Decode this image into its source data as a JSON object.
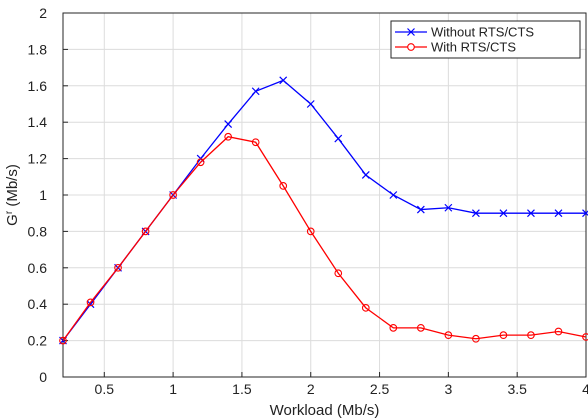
{
  "chart_data": {
    "type": "line",
    "xlabel": "Workload (Mb/s)",
    "ylabel": "G",
    "ylabel_sup": "r",
    "ylabel_unit": " (Mb/s)",
    "xlim": [
      0.2,
      4
    ],
    "ylim": [
      0,
      2
    ],
    "xticks": [
      0.5,
      1,
      1.5,
      2,
      2.5,
      3,
      3.5,
      4
    ],
    "xtick_labels": [
      "0.5",
      "1",
      "1.5",
      "2",
      "2.5",
      "3",
      "3.5",
      "4"
    ],
    "yticks": [
      0,
      0.2,
      0.4,
      0.6,
      0.8,
      1,
      1.2,
      1.4,
      1.6,
      1.8,
      2
    ],
    "ytick_labels": [
      "0",
      "0.2",
      "0.4",
      "0.6",
      "0.8",
      "1",
      "1.2",
      "1.4",
      "1.6",
      "1.8",
      "2"
    ],
    "grid": true,
    "legend_position": "top-right",
    "series": [
      {
        "name": "Without RTS/CTS",
        "color": "#0000ff",
        "marker": "x",
        "x": [
          0.2,
          0.4,
          0.6,
          0.8,
          1.0,
          1.2,
          1.4,
          1.6,
          1.8,
          2.0,
          2.2,
          2.4,
          2.6,
          2.8,
          3.0,
          3.2,
          3.4,
          3.6,
          3.8,
          4.0
        ],
        "y": [
          0.2,
          0.4,
          0.6,
          0.8,
          1.0,
          1.2,
          1.39,
          1.57,
          1.63,
          1.5,
          1.31,
          1.11,
          1.0,
          0.92,
          0.93,
          0.9,
          0.9,
          0.9,
          0.9,
          0.9
        ]
      },
      {
        "name": "With RTS/CTS",
        "color": "#ff0000",
        "marker": "o",
        "x": [
          0.2,
          0.4,
          0.6,
          0.8,
          1.0,
          1.2,
          1.4,
          1.6,
          1.8,
          2.0,
          2.2,
          2.4,
          2.6,
          2.8,
          3.0,
          3.2,
          3.4,
          3.6,
          3.8,
          4.0
        ],
        "y": [
          0.2,
          0.41,
          0.6,
          0.8,
          1.0,
          1.18,
          1.32,
          1.29,
          1.05,
          0.8,
          0.57,
          0.38,
          0.27,
          0.27,
          0.23,
          0.21,
          0.23,
          0.23,
          0.25,
          0.22
        ]
      }
    ]
  }
}
